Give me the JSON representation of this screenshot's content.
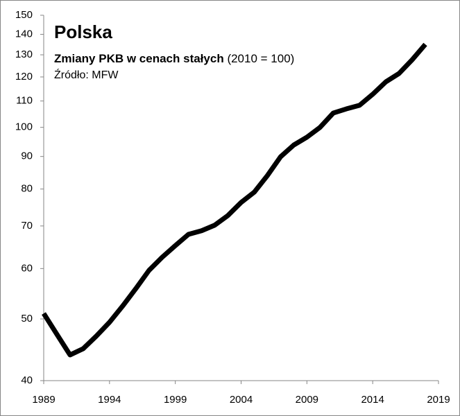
{
  "chart_data": {
    "type": "line",
    "title": "Polska",
    "subtitle": "Zmiany PKB w cenach stałych",
    "subtitle_note": "(2010 = 100)",
    "source": "Źródło: MFW",
    "x": [
      1989,
      1990,
      1991,
      1992,
      1993,
      1994,
      1995,
      1996,
      1997,
      1998,
      1999,
      2000,
      2001,
      2002,
      2003,
      2004,
      2005,
      2006,
      2007,
      2008,
      2009,
      2010,
      2011,
      2012,
      2013,
      2014,
      2015,
      2016,
      2017,
      2018
    ],
    "series": [
      {
        "name": "Polska",
        "color": "#000000",
        "values": [
          51,
          47.3,
          43.9,
          44.9,
          47,
          49.4,
          52.4,
          55.8,
          59.6,
          62.5,
          65.2,
          67.9,
          68.8,
          70.2,
          72.7,
          76.2,
          79.1,
          84,
          89.9,
          93.8,
          96.5,
          100,
          105.3,
          106.9,
          108.3,
          112.7,
          117.9,
          121.5,
          127.7,
          135
        ]
      }
    ],
    "xlim": [
      1989,
      2019
    ],
    "xticks": [
      1989,
      1994,
      1999,
      2004,
      2009,
      2014,
      2019
    ],
    "ylim": [
      40,
      150
    ],
    "yticks": [
      40,
      50,
      60,
      70,
      80,
      90,
      100,
      110,
      120,
      130,
      140,
      150
    ],
    "log_y": true,
    "grid": false
  }
}
